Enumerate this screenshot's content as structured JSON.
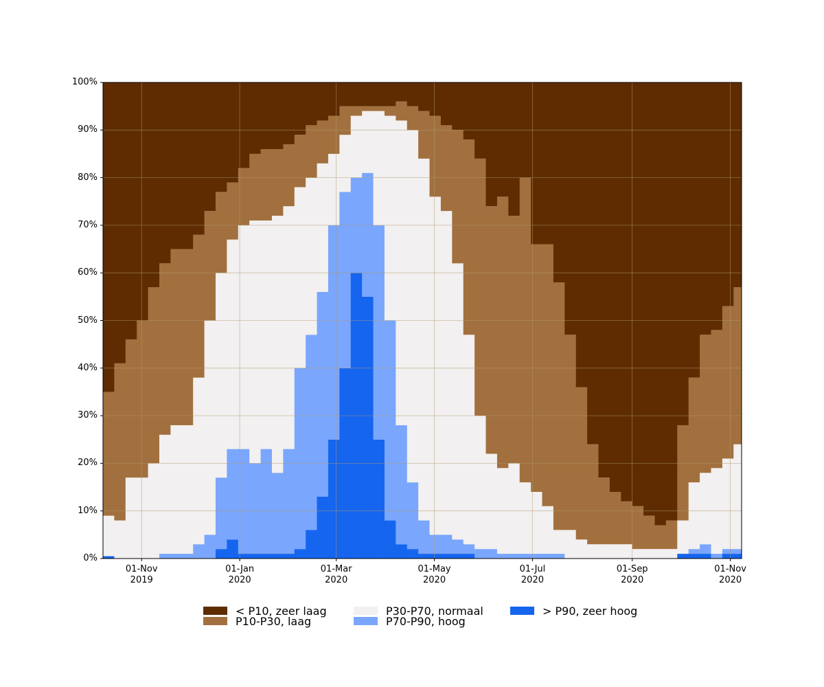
{
  "chart_data": {
    "type": "stacked-step-area",
    "x": [
      "2019-10-08",
      "2019-10-15",
      "2019-10-22",
      "2019-10-29",
      "2019-11-05",
      "2019-11-12",
      "2019-11-19",
      "2019-11-26",
      "2019-12-03",
      "2019-12-10",
      "2019-12-17",
      "2019-12-24",
      "2019-12-31",
      "2020-01-07",
      "2020-01-14",
      "2020-01-21",
      "2020-01-28",
      "2020-02-04",
      "2020-02-11",
      "2020-02-18",
      "2020-02-25",
      "2020-03-03",
      "2020-03-10",
      "2020-03-17",
      "2020-03-24",
      "2020-03-31",
      "2020-04-07",
      "2020-04-14",
      "2020-04-21",
      "2020-04-28",
      "2020-05-05",
      "2020-05-12",
      "2020-05-19",
      "2020-05-26",
      "2020-06-02",
      "2020-06-09",
      "2020-06-16",
      "2020-06-23",
      "2020-06-30",
      "2020-07-07",
      "2020-07-14",
      "2020-07-21",
      "2020-07-28",
      "2020-08-04",
      "2020-08-11",
      "2020-08-18",
      "2020-08-25",
      "2020-09-01",
      "2020-09-08",
      "2020-09-15",
      "2020-09-22",
      "2020-09-29",
      "2020-10-06",
      "2020-10-13",
      "2020-10-20",
      "2020-10-27",
      "2020-11-03"
    ],
    "series": [
      {
        "name": "< P10, zeer laag",
        "color": "#5e2c00",
        "values": [
          65,
          59,
          54,
          50,
          43,
          38,
          35,
          35,
          32,
          27,
          23,
          21,
          18,
          15,
          14,
          14,
          13,
          11,
          9,
          8,
          7,
          5,
          5,
          5,
          5,
          5,
          4,
          5,
          6,
          7,
          9,
          10,
          12,
          16,
          26,
          24,
          28,
          20,
          34,
          34,
          42,
          53,
          64,
          76,
          83,
          86,
          88,
          89,
          91,
          93,
          92,
          72,
          62,
          53,
          52,
          47,
          43
        ]
      },
      {
        "name": "P10-P30, laag",
        "color": "#a2703e",
        "values": [
          26,
          33,
          29,
          33,
          37,
          36,
          37,
          37,
          30,
          23,
          17,
          12,
          12,
          14,
          15,
          14,
          13,
          11,
          11,
          9,
          8,
          6,
          2,
          1,
          1,
          2,
          4,
          5,
          10,
          17,
          18,
          28,
          41,
          54,
          52,
          57,
          52,
          64,
          52,
          55,
          52,
          41,
          32,
          21,
          14,
          11,
          9,
          9,
          7,
          5,
          6,
          20,
          22,
          29,
          29,
          32,
          33
        ]
      },
      {
        "name": "P30-P70, normaal",
        "color": "#f2f0f0",
        "values": [
          8.5,
          8,
          17,
          17,
          20,
          25,
          27,
          27,
          35,
          45,
          43,
          44,
          47,
          51,
          48,
          54,
          51,
          38,
          33,
          27,
          15,
          12,
          13,
          13,
          24,
          43,
          64,
          74,
          76,
          71,
          68,
          58,
          44,
          28,
          20,
          18,
          19,
          15,
          13,
          10,
          5,
          6,
          4,
          3,
          3,
          3,
          3,
          2,
          2,
          2,
          2,
          7,
          14,
          15,
          18,
          19,
          22
        ]
      },
      {
        "name": "P70-P90, hoog",
        "color": "#7aa6fd",
        "values": [
          0,
          0,
          0,
          0,
          0,
          1,
          1,
          1,
          3,
          5,
          15,
          19,
          22,
          19,
          22,
          17,
          22,
          38,
          41,
          43,
          45,
          37,
          20,
          26,
          45,
          42,
          25,
          14,
          7,
          4,
          4,
          3,
          2,
          2,
          2,
          1,
          1,
          1,
          1,
          1,
          1,
          0,
          0,
          0,
          0,
          0,
          0,
          0,
          0,
          0,
          0,
          0,
          1,
          2,
          1,
          1,
          1
        ]
      },
      {
        "name": "> P90, zeer hoog",
        "color": "#1565ee",
        "values": [
          0.5,
          0,
          0,
          0,
          0,
          0,
          0,
          0,
          0,
          0,
          2,
          4,
          1,
          1,
          1,
          1,
          1,
          2,
          6,
          13,
          25,
          40,
          60,
          55,
          25,
          8,
          3,
          2,
          1,
          1,
          1,
          1,
          1,
          0,
          0,
          0,
          0,
          0,
          0,
          0,
          0,
          0,
          0,
          0,
          0,
          0,
          0,
          0,
          0,
          0,
          0,
          1,
          1,
          1,
          0,
          1,
          1
        ]
      }
    ],
    "xlim": [
      "2019-10-08",
      "2020-11-08"
    ],
    "xticks": [
      {
        "value": "2019-11-01",
        "label": "01-Nov\n2019"
      },
      {
        "value": "2020-01-01",
        "label": "01-Jan\n2020"
      },
      {
        "value": "2020-03-01",
        "label": "01-Mar\n2020"
      },
      {
        "value": "2020-05-01",
        "label": "01-May\n2020"
      },
      {
        "value": "2020-07-01",
        "label": "01-Jul\n2020"
      },
      {
        "value": "2020-09-01",
        "label": "01-Sep\n2020"
      },
      {
        "value": "2020-11-01",
        "label": "01-Nov\n2020"
      }
    ],
    "ylim": [
      0,
      100
    ],
    "yticks": [
      {
        "value": 0,
        "label": "0%"
      },
      {
        "value": 10,
        "label": "10%"
      },
      {
        "value": 20,
        "label": "20%"
      },
      {
        "value": 30,
        "label": "30%"
      },
      {
        "value": 40,
        "label": "40%"
      },
      {
        "value": 50,
        "label": "50%"
      },
      {
        "value": 60,
        "label": "60%"
      },
      {
        "value": 70,
        "label": "70%"
      },
      {
        "value": 80,
        "label": "80%"
      },
      {
        "value": 90,
        "label": "90%"
      },
      {
        "value": 100,
        "label": "100%"
      }
    ],
    "grid": true
  }
}
